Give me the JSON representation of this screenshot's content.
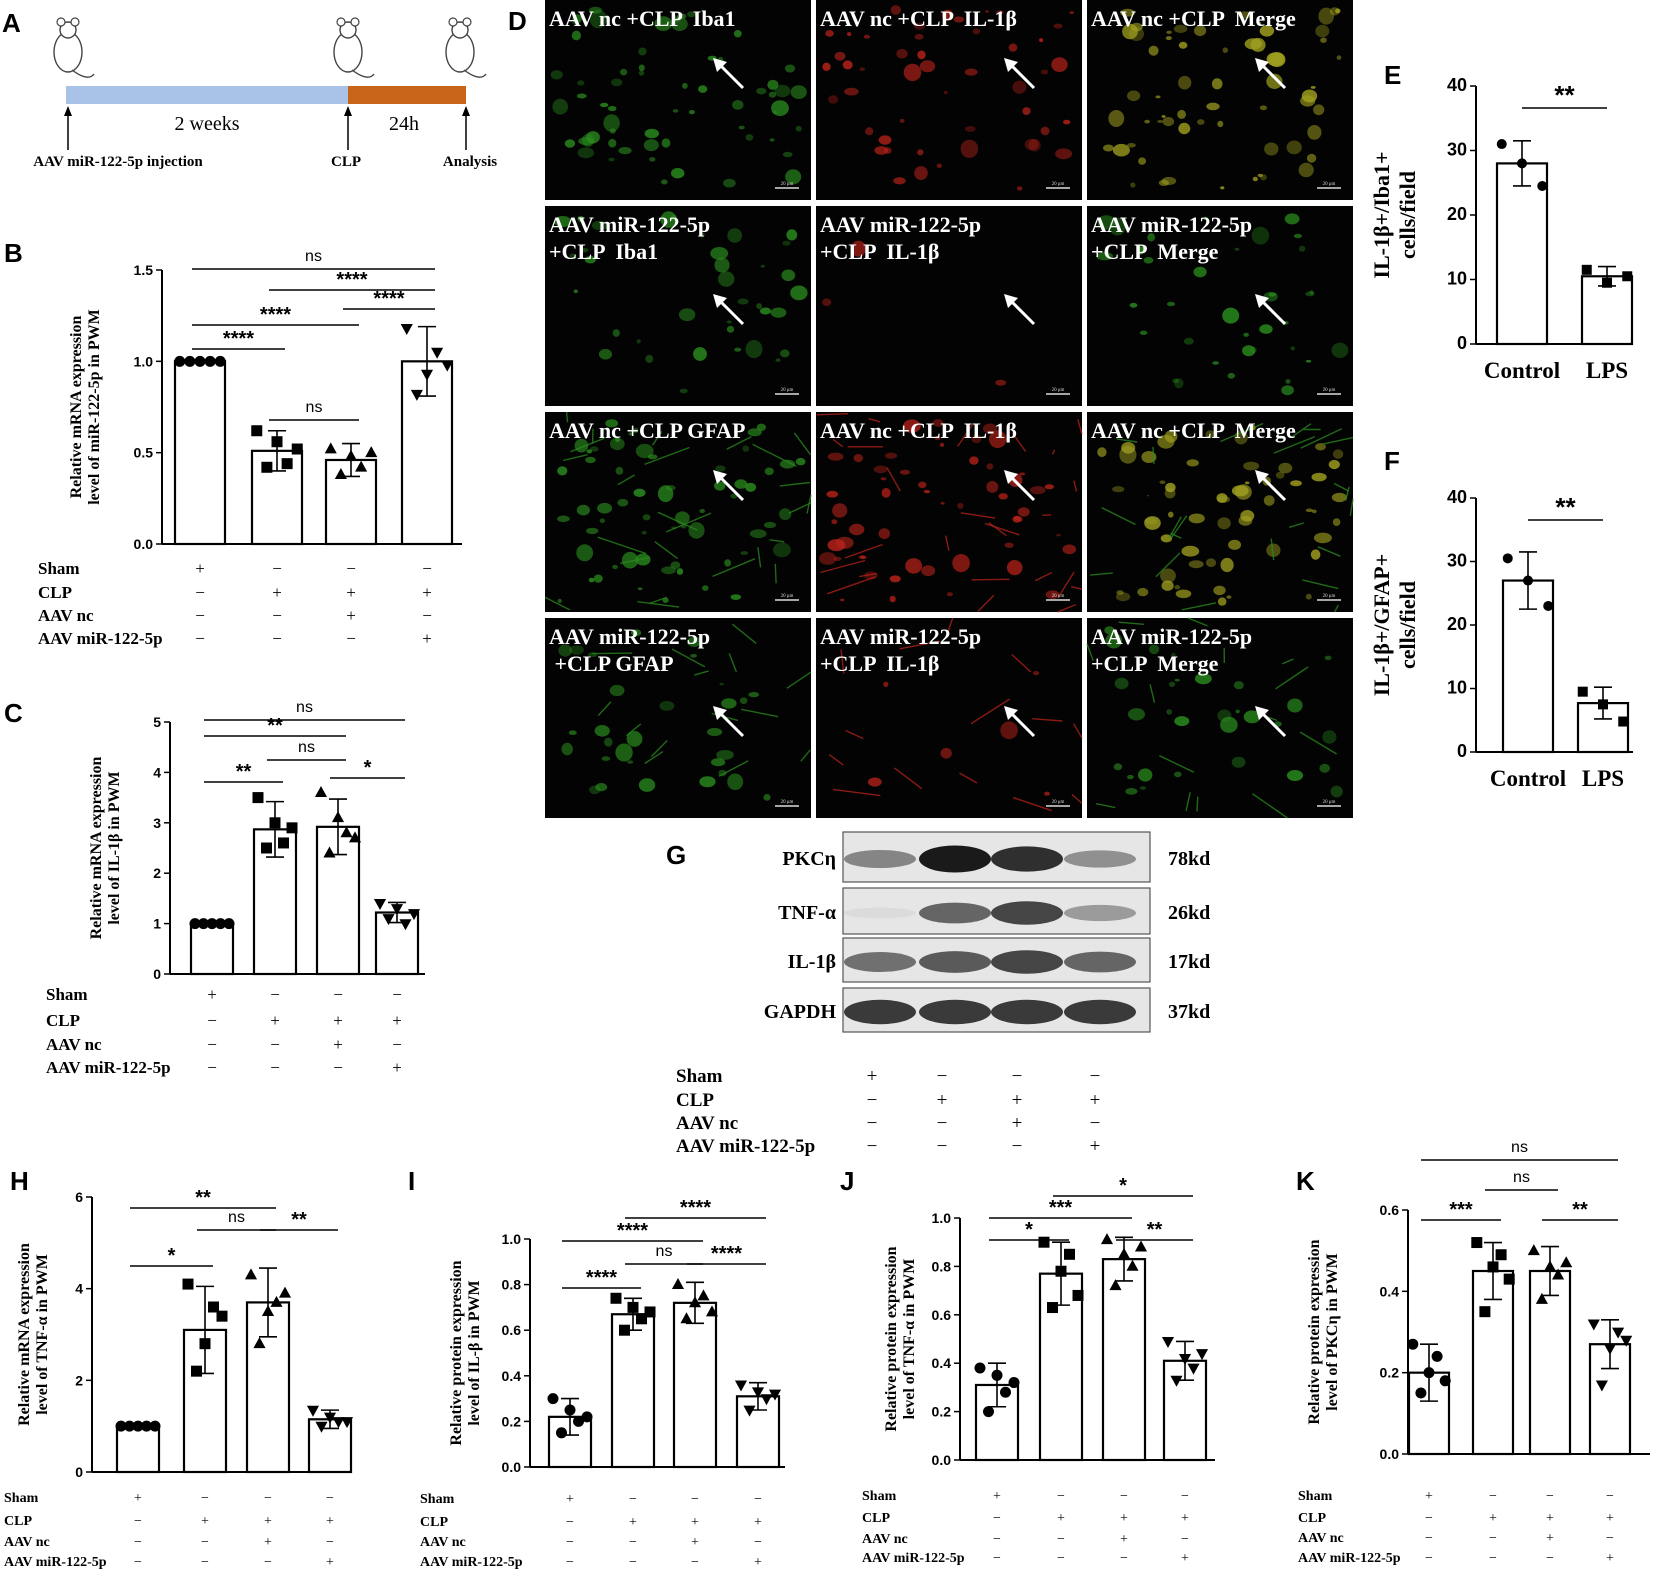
{
  "panel_letters": [
    "A",
    "B",
    "C",
    "D",
    "E",
    "F",
    "G",
    "H",
    "I",
    "J",
    "K"
  ],
  "timeline": {
    "period1": "2 weeks",
    "period2": "24h",
    "events": [
      "AAV miR-122-5p injection",
      "CLP",
      "Analysis"
    ],
    "colors": {
      "period1": "#a9c2e8",
      "period2": "#c8651a"
    }
  },
  "condition_rows": {
    "labels": [
      "Sham",
      "CLP",
      "AAV nc",
      "AAV miR-122-5p"
    ],
    "signs": [
      [
        "+",
        "−",
        "−",
        "−"
      ],
      [
        "−",
        "+",
        "+",
        "+"
      ],
      [
        "−",
        "−",
        "+",
        "−"
      ],
      [
        "−",
        "−",
        "−",
        "+"
      ]
    ]
  },
  "micrographs": {
    "labels": [
      [
        "AAV nc +CLP  Iba1",
        "AAV nc +CLP  IL-1β",
        "AAV nc +CLP  Merge"
      ],
      [
        "AAV miR-122-5p\n+CLP  Iba1",
        "AAV miR-122-5p\n+CLP  IL-1β",
        "AAV miR-122-5p\n+CLP  Merge"
      ],
      [
        "AAV nc +CLP GFAP",
        "AAV nc +CLP  IL-1β",
        "AAV nc +CLP  Merge"
      ],
      [
        "AAV miR-122-5p\n +CLP GFAP",
        "AAV miR-122-5p\n+CLP  IL-1β",
        "AAV miR-122-5p\n+CLP  Merge"
      ]
    ],
    "scalebar": "20 μm",
    "colors": {
      "green": "#2a8c1e",
      "red": "#b8221a",
      "merge": "#a0a020"
    }
  },
  "western_blot": {
    "bands": [
      {
        "name": "PKCη",
        "size": "78kd",
        "intensity": [
          0.45,
          0.95,
          0.85,
          0.4
        ]
      },
      {
        "name": "TNF-α",
        "size": "26kd",
        "intensity": [
          0.05,
          0.6,
          0.75,
          0.35
        ]
      },
      {
        "name": "IL-1β",
        "size": "17kd",
        "intensity": [
          0.55,
          0.65,
          0.75,
          0.6
        ]
      },
      {
        "name": "GAPDH",
        "size": "37kd",
        "intensity": [
          0.8,
          0.8,
          0.8,
          0.8
        ]
      }
    ]
  },
  "chart_data": [
    {
      "id": "B",
      "type": "bar",
      "ylabel": "Relative mRNA expression\nlevel of miR-122-5p in PWM",
      "ylim": [
        0,
        1.5
      ],
      "yticks": [
        "0.0",
        "0.5",
        "1.0",
        "1.5"
      ],
      "values": [
        1.0,
        0.51,
        0.46,
        1.0
      ],
      "errors": [
        0.0,
        0.11,
        0.09,
        0.19
      ],
      "points": [
        [
          1,
          1,
          1,
          1,
          1
        ],
        [
          0.62,
          0.42,
          0.56,
          0.44,
          0.52
        ],
        [
          0.52,
          0.38,
          0.48,
          0.42,
          0.5
        ],
        [
          1.18,
          0.82,
          0.93,
          1.05,
          0.98
        ]
      ],
      "comparisons": [
        {
          "a": 1,
          "b": 2,
          "label": "****"
        },
        {
          "a": 2,
          "b": 3,
          "label": "ns"
        },
        {
          "a": 1,
          "b": 3,
          "label": "****"
        },
        {
          "a": 3,
          "b": 4,
          "label": "****"
        },
        {
          "a": 2,
          "b": 4,
          "label": "****"
        },
        {
          "a": 1,
          "b": 4,
          "label": "ns"
        }
      ]
    },
    {
      "id": "C",
      "type": "bar",
      "ylabel": "Relative mRNA expression\nlevel of IL-1β in PWM",
      "ylim": [
        0,
        5
      ],
      "yticks": [
        "0",
        "1",
        "2",
        "3",
        "4",
        "5"
      ],
      "values": [
        1.0,
        2.87,
        2.92,
        1.22
      ],
      "errors": [
        0.0,
        0.55,
        0.55,
        0.2
      ],
      "points": [
        [
          1,
          1,
          1,
          1,
          1
        ],
        [
          3.5,
          2.5,
          3.0,
          2.6,
          2.9
        ],
        [
          3.6,
          2.4,
          3.1,
          2.8,
          2.7
        ],
        [
          1.4,
          1.1,
          1.3,
          1.0,
          1.2
        ]
      ],
      "comparisons": [
        {
          "a": 1,
          "b": 2,
          "label": "**"
        },
        {
          "a": 2,
          "b": 3,
          "label": "ns"
        },
        {
          "a": 3,
          "b": 4,
          "label": "*"
        },
        {
          "a": 1,
          "b": 3,
          "label": "**"
        },
        {
          "a": 1,
          "b": 4,
          "label": "ns"
        }
      ]
    },
    {
      "id": "E",
      "type": "bar",
      "ylabel": "IL-1β+/Iba1+\ncells/field",
      "categories": [
        "Control",
        "LPS"
      ],
      "ylim": [
        0,
        40
      ],
      "yticks": [
        "0",
        "10",
        "20",
        "30",
        "40"
      ],
      "values": [
        28,
        10.5
      ],
      "errors": [
        3.5,
        1.5
      ],
      "points": [
        [
          31,
          28,
          24.5
        ],
        [
          11.5,
          9.5,
          10.5
        ]
      ],
      "comparisons": [
        {
          "a": 1,
          "b": 2,
          "label": "**"
        }
      ]
    },
    {
      "id": "F",
      "type": "bar",
      "ylabel": "IL-1β+/GFAP+\ncells/field",
      "categories": [
        "Control",
        "LPS"
      ],
      "ylim": [
        0,
        40
      ],
      "yticks": [
        "0",
        "10",
        "20",
        "30",
        "40"
      ],
      "values": [
        27,
        7.7
      ],
      "errors": [
        4.5,
        2.5
      ],
      "points": [
        [
          30.5,
          27,
          23
        ],
        [
          9.5,
          7.5,
          4.8
        ]
      ],
      "comparisons": [
        {
          "a": 1,
          "b": 2,
          "label": "**"
        }
      ]
    },
    {
      "id": "H",
      "type": "bar",
      "ylabel": "Relative mRNA expression\nlevel of TNF-α in PWM",
      "ylim": [
        0,
        6
      ],
      "yticks": [
        "0",
        "2",
        "4",
        "6"
      ],
      "values": [
        1.0,
        3.1,
        3.7,
        1.15
      ],
      "errors": [
        0.0,
        0.95,
        0.75,
        0.2
      ],
      "points": [
        [
          1,
          1,
          1,
          1,
          1
        ],
        [
          4.1,
          2.2,
          2.8,
          3.6,
          3.4
        ],
        [
          4.3,
          2.8,
          3.5,
          3.7,
          3.9
        ],
        [
          1.35,
          1.0,
          1.2,
          1.1,
          1.1
        ]
      ],
      "comparisons": [
        {
          "a": 1,
          "b": 2,
          "label": "*"
        },
        {
          "a": 2,
          "b": 3,
          "label": "ns"
        },
        {
          "a": 3,
          "b": 4,
          "label": "**"
        },
        {
          "a": 1,
          "b": 3,
          "label": "**"
        }
      ]
    },
    {
      "id": "I",
      "type": "bar",
      "ylabel": "Relative protein expression\nlevel of IL-β in PWM",
      "ylim": [
        0,
        1.0
      ],
      "yticks": [
        "0.0",
        "0.2",
        "0.4",
        "0.6",
        "0.8",
        "1.0"
      ],
      "values": [
        0.22,
        0.67,
        0.72,
        0.31
      ],
      "errors": [
        0.08,
        0.07,
        0.09,
        0.06
      ],
      "points": [
        [
          0.3,
          0.15,
          0.25,
          0.2,
          0.22
        ],
        [
          0.74,
          0.6,
          0.7,
          0.65,
          0.68
        ],
        [
          0.8,
          0.65,
          0.72,
          0.75,
          0.68
        ],
        [
          0.36,
          0.25,
          0.33,
          0.3,
          0.32
        ]
      ],
      "comparisons": [
        {
          "a": 1,
          "b": 2,
          "label": "****"
        },
        {
          "a": 2,
          "b": 3,
          "label": "ns"
        },
        {
          "a": 3,
          "b": 4,
          "label": "****"
        },
        {
          "a": 1,
          "b": 3,
          "label": "****"
        },
        {
          "a": 2,
          "b": 4,
          "label": "****"
        }
      ]
    },
    {
      "id": "J",
      "type": "bar",
      "ylabel": "Relative protein expression\nlevel of TNF-α in PWM",
      "ylim": [
        0,
        1.0
      ],
      "yticks": [
        "0.0",
        "0.2",
        "0.4",
        "0.6",
        "0.8",
        "1.0"
      ],
      "values": [
        0.31,
        0.77,
        0.83,
        0.41
      ],
      "errors": [
        0.09,
        0.13,
        0.09,
        0.08
      ],
      "points": [
        [
          0.38,
          0.2,
          0.35,
          0.28,
          0.32
        ],
        [
          0.9,
          0.63,
          0.78,
          0.85,
          0.68
        ],
        [
          0.91,
          0.72,
          0.85,
          0.8,
          0.88
        ],
        [
          0.49,
          0.33,
          0.42,
          0.38,
          0.44
        ]
      ],
      "comparisons": [
        {
          "a": 1,
          "b": 2,
          "label": "*"
        },
        {
          "a": 3,
          "b": 4,
          "label": "**"
        },
        {
          "a": 1,
          "b": 3,
          "label": "***"
        },
        {
          "a": 2,
          "b": 4,
          "label": "*"
        }
      ]
    },
    {
      "id": "K",
      "type": "bar",
      "ylabel": "Relative protein expression\nlevel of PKCη in PWM",
      "ylim": [
        0,
        0.6
      ],
      "yticks": [
        "0.0",
        "0.2",
        "0.4",
        "0.6"
      ],
      "values": [
        0.2,
        0.45,
        0.45,
        0.27
      ],
      "errors": [
        0.07,
        0.07,
        0.06,
        0.06
      ],
      "points": [
        [
          0.27,
          0.15,
          0.2,
          0.24,
          0.18
        ],
        [
          0.52,
          0.35,
          0.46,
          0.49,
          0.43
        ],
        [
          0.5,
          0.38,
          0.46,
          0.44,
          0.47
        ],
        [
          0.32,
          0.17,
          0.26,
          0.3,
          0.28
        ]
      ],
      "comparisons": [
        {
          "a": 1,
          "b": 2,
          "label": "***"
        },
        {
          "a": 2,
          "b": 3,
          "label": "ns"
        },
        {
          "a": 3,
          "b": 4,
          "label": "**"
        },
        {
          "a": 1,
          "b": 4,
          "label": "ns"
        }
      ]
    }
  ]
}
